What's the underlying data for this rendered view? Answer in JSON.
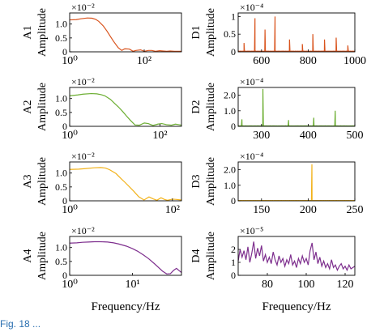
{
  "caption": "Fig. 18 ...",
  "xlabel": "Frequency/Hz",
  "ylabel": "Amplitude",
  "colors": {
    "A1": "#d9541e",
    "A2": "#6cae32",
    "A3": "#f2b21b",
    "A4": "#7e2f8e",
    "D1": "#d9541e",
    "D2": "#6cae32",
    "D3": "#f2b21b",
    "D4": "#7e2f8e"
  },
  "chart_data": [
    {
      "id": "A1",
      "label": "A1",
      "type": "line",
      "xscale": "log",
      "xlim": [
        1,
        1000
      ],
      "ylim": [
        0,
        1.4
      ],
      "exponent_label": "×10⁻²",
      "yticks": [
        "0",
        "0.5",
        "1.0"
      ],
      "xticks": [
        "10⁰",
        "10²"
      ],
      "x": [
        1,
        1.5,
        2,
        3,
        4,
        5,
        6,
        8,
        10,
        12,
        15,
        20,
        25,
        30,
        40,
        50,
        60,
        80,
        100,
        130,
        160,
        200,
        260,
        320,
        400,
        500,
        650,
        800,
        1000
      ],
      "values": [
        1.15,
        1.16,
        1.19,
        1.22,
        1.21,
        1.17,
        1.1,
        0.93,
        0.75,
        0.58,
        0.38,
        0.15,
        0.05,
        0.11,
        0.1,
        0.02,
        0.05,
        0.07,
        0.02,
        0.05,
        0.05,
        0.02,
        0.04,
        0.03,
        0.02,
        0.03,
        0.02,
        0.02,
        0.02
      ]
    },
    {
      "id": "A2",
      "label": "A2",
      "type": "line",
      "xscale": "log",
      "xlim": [
        1,
        300
      ],
      "ylim": [
        0,
        1.4
      ],
      "exponent_label": "×10⁻²",
      "yticks": [
        "0",
        "0.5",
        "1.0"
      ],
      "xticks": [
        "10⁰",
        "10²"
      ],
      "x": [
        1,
        1.5,
        2,
        3,
        4,
        5,
        6,
        8,
        10,
        12,
        15,
        18,
        22,
        28,
        35,
        45,
        55,
        70,
        90,
        110,
        140,
        180,
        220,
        260,
        300
      ],
      "values": [
        1.1,
        1.13,
        1.16,
        1.18,
        1.17,
        1.14,
        1.1,
        0.97,
        0.82,
        0.7,
        0.53,
        0.38,
        0.22,
        0.05,
        0.04,
        0.12,
        0.1,
        0.03,
        0.08,
        0.1,
        0.06,
        0.04,
        0.08,
        0.06,
        0.04
      ]
    },
    {
      "id": "A3",
      "label": "A3",
      "type": "line",
      "xscale": "log",
      "xlim": [
        1,
        150
      ],
      "ylim": [
        0,
        1.4
      ],
      "exponent_label": "×10⁻²",
      "yticks": [
        "0",
        "0.5",
        "1.0"
      ],
      "xticks": [
        "10⁰",
        "10²"
      ],
      "x": [
        1,
        1.5,
        2,
        3,
        4,
        5,
        6,
        8,
        10,
        12,
        15,
        18,
        22,
        28,
        35,
        42,
        50,
        60,
        70,
        80,
        100,
        120,
        150
      ],
      "values": [
        1.13,
        1.14,
        1.16,
        1.19,
        1.2,
        1.18,
        1.12,
        0.98,
        0.8,
        0.66,
        0.48,
        0.33,
        0.15,
        0.03,
        0.14,
        0.07,
        0.02,
        0.11,
        0.05,
        0.02,
        0.06,
        0.05,
        0.03
      ]
    },
    {
      "id": "A4",
      "label": "A4",
      "type": "line",
      "xscale": "log",
      "xlim": [
        1,
        60
      ],
      "ylim": [
        0,
        1.4
      ],
      "exponent_label": "×10⁻²",
      "yticks": [
        "0",
        "0.5",
        "1.0"
      ],
      "xticks": [
        "10⁰",
        "10¹"
      ],
      "x": [
        1,
        1.3,
        1.6,
        2,
        2.5,
        3,
        4,
        5,
        6,
        8,
        10,
        12,
        15,
        18,
        22,
        26,
        30,
        35,
        40,
        45,
        50,
        55,
        60
      ],
      "values": [
        1.16,
        1.17,
        1.19,
        1.2,
        1.21,
        1.21,
        1.2,
        1.17,
        1.13,
        1.05,
        0.96,
        0.87,
        0.73,
        0.6,
        0.43,
        0.28,
        0.15,
        0.05,
        0.06,
        0.18,
        0.25,
        0.17,
        0.1
      ]
    },
    {
      "id": "D1",
      "label": "D1",
      "type": "line",
      "xlim": [
        500,
        1000
      ],
      "ylim": [
        0,
        1.1
      ],
      "exponent_label": "×10⁻⁴",
      "yticks": [
        "0",
        "0.5",
        "1"
      ],
      "xticks": [
        "600",
        "800",
        "1000"
      ],
      "baseline": 0.02,
      "peaks": [
        {
          "x": 525,
          "y": 0.25
        },
        {
          "x": 572,
          "y": 0.95
        },
        {
          "x": 615,
          "y": 0.63
        },
        {
          "x": 658,
          "y": 1.0
        },
        {
          "x": 720,
          "y": 0.35
        },
        {
          "x": 775,
          "y": 0.22
        },
        {
          "x": 820,
          "y": 0.5
        },
        {
          "x": 870,
          "y": 0.35
        },
        {
          "x": 920,
          "y": 0.4
        },
        {
          "x": 970,
          "y": 0.18
        }
      ]
    },
    {
      "id": "D2",
      "label": "D2",
      "type": "line",
      "xlim": [
        250,
        500
      ],
      "ylim": [
        0,
        2.5
      ],
      "exponent_label": "×10⁻⁴",
      "yticks": [
        "0",
        "1.0",
        "2.0"
      ],
      "xticks": [
        "300",
        "400",
        "500"
      ],
      "baseline": 0.03,
      "peaks": [
        {
          "x": 258,
          "y": 0.45
        },
        {
          "x": 303,
          "y": 2.4
        },
        {
          "x": 358,
          "y": 0.4
        },
        {
          "x": 412,
          "y": 0.55
        },
        {
          "x": 458,
          "y": 1.0
        }
      ]
    },
    {
      "id": "D3",
      "label": "D3",
      "type": "line",
      "xlim": [
        125,
        250
      ],
      "ylim": [
        0,
        2.5
      ],
      "exponent_label": "×10⁻⁴",
      "yticks": [
        "0",
        "1.0",
        "2.0"
      ],
      "xticks": [
        "150",
        "200",
        "250"
      ],
      "baseline": 0.02,
      "peaks": [
        {
          "x": 204,
          "y": 2.35
        }
      ]
    },
    {
      "id": "D4",
      "label": "D4",
      "type": "line",
      "xlim": [
        65,
        125
      ],
      "ylim": [
        0,
        3
      ],
      "exponent_label": "×10⁻⁵",
      "yticks": [
        "0",
        "1",
        "2"
      ],
      "xticks": [
        "80",
        "100",
        "120"
      ],
      "x": [
        65,
        66,
        67,
        68,
        69,
        70,
        71,
        72,
        73,
        74,
        75,
        76,
        77,
        78,
        79,
        80,
        81,
        82,
        83,
        84,
        85,
        86,
        87,
        88,
        89,
        90,
        91,
        92,
        93,
        94,
        95,
        96,
        97,
        98,
        99,
        100,
        101,
        102,
        103,
        104,
        105,
        106,
        107,
        108,
        109,
        110,
        111,
        112,
        113,
        114,
        115,
        116,
        117,
        118,
        119,
        120,
        121,
        122,
        123,
        124,
        125
      ],
      "values": [
        1.1,
        2.0,
        1.4,
        1.9,
        1.2,
        2.2,
        1.0,
        1.7,
        2.6,
        1.3,
        2.1,
        1.5,
        2.3,
        1.1,
        1.6,
        1.0,
        1.4,
        0.9,
        1.8,
        1.2,
        0.8,
        1.5,
        1.0,
        1.3,
        0.7,
        1.2,
        0.9,
        1.6,
        0.8,
        1.1,
        0.6,
        1.3,
        0.9,
        1.5,
        1.0,
        1.3,
        0.8,
        1.9,
        2.5,
        1.2,
        1.8,
        0.9,
        1.4,
        0.7,
        1.1,
        0.6,
        0.9,
        0.5,
        1.2,
        0.6,
        0.8,
        0.4,
        0.7,
        0.9,
        0.5,
        0.7,
        0.4,
        0.8,
        0.5,
        0.6,
        0.7
      ]
    }
  ]
}
